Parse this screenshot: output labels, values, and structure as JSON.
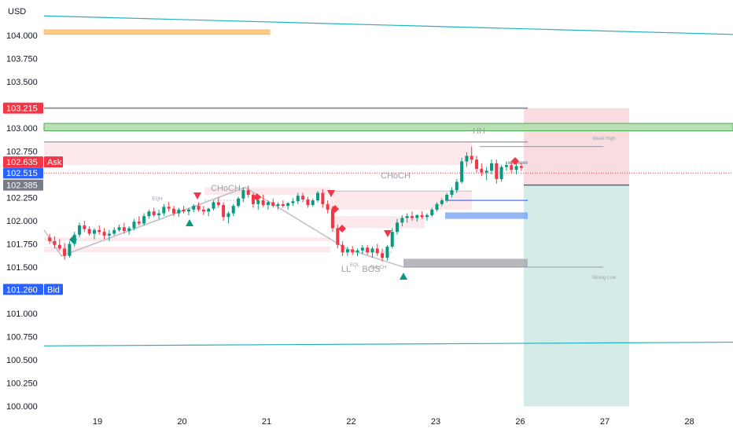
{
  "chart_data": {
    "type": "candlestick",
    "currency": "USD",
    "y_ticks": [
      104.0,
      103.75,
      103.5,
      103.0,
      102.75,
      102.25,
      102.0,
      101.75,
      101.5,
      101.0,
      100.75,
      100.5,
      100.25,
      100.0
    ],
    "y_tick_labels": [
      "104.000",
      "103.750",
      "103.500",
      "103.000",
      "102.750",
      "102.250",
      "102.000",
      "101.750",
      "101.500",
      "101.000",
      "100.750",
      "100.500",
      "100.250",
      "100.000"
    ],
    "x_ticks": [
      19,
      20,
      21,
      22,
      23,
      26,
      27,
      28
    ],
    "x_tick_labels": [
      "19",
      "20",
      "21",
      "22",
      "23",
      "26",
      "27",
      "28"
    ],
    "price_tags": [
      {
        "value": 103.215,
        "label": "103.215",
        "color": "#f23645"
      },
      {
        "value": 102.635,
        "label": "102.635",
        "suffix": "Ask",
        "color": "#f23645"
      },
      {
        "value": 102.515,
        "label": "102.515",
        "color": "#2962ff"
      },
      {
        "value": 102.385,
        "label": "102.385",
        "color": "#787b86"
      },
      {
        "value": 101.26,
        "label": "101.260",
        "suffix": "Bid",
        "color": "#2962ff"
      }
    ],
    "annotations": [
      {
        "text": "EQH"
      },
      {
        "text": "CHoCH"
      },
      {
        "text": "CHoCH"
      },
      {
        "text": "HH"
      },
      {
        "text": "Weak High"
      },
      {
        "text": "LL"
      },
      {
        "text": "EQL"
      },
      {
        "text": "BOS"
      },
      {
        "text": "CHoCH"
      },
      {
        "text": "Strong Low"
      }
    ],
    "trade_box": {
      "entry": 102.385,
      "stop": 103.215,
      "target": 100.0,
      "colors": {
        "loss": "#f7d3d7",
        "profit": "#cfe9e5"
      }
    },
    "colors": {
      "up": "#089981",
      "down": "#f23645",
      "teal": "#22b1bf",
      "green_zone": "#4caf50",
      "orange_zone": "#ffb74d"
    },
    "candles": [
      [
        101.82,
        101.86,
        101.75,
        101.78
      ],
      [
        101.78,
        101.83,
        101.7,
        101.74
      ],
      [
        101.74,
        101.8,
        101.68,
        101.7
      ],
      [
        101.7,
        101.76,
        101.58,
        101.62
      ],
      [
        101.62,
        101.78,
        101.6,
        101.75
      ],
      [
        101.75,
        101.88,
        101.72,
        101.85
      ],
      [
        101.85,
        101.98,
        101.82,
        101.95
      ],
      [
        101.95,
        102.0,
        101.88,
        101.91
      ],
      [
        101.91,
        101.94,
        101.84,
        101.86
      ],
      [
        101.86,
        101.92,
        101.8,
        101.9
      ],
      [
        101.9,
        101.95,
        101.85,
        101.88
      ],
      [
        101.88,
        101.92,
        101.8,
        101.84
      ],
      [
        101.84,
        101.9,
        101.78,
        101.86
      ],
      [
        101.86,
        101.93,
        101.84,
        101.9
      ],
      [
        101.9,
        101.96,
        101.88,
        101.93
      ],
      [
        101.93,
        101.98,
        101.86,
        101.89
      ],
      [
        101.89,
        101.94,
        101.85,
        101.92
      ],
      [
        101.92,
        102.02,
        101.9,
        101.99
      ],
      [
        101.99,
        102.05,
        101.95,
        101.97
      ],
      [
        101.97,
        102.08,
        101.95,
        102.05
      ],
      [
        102.05,
        102.12,
        102.02,
        102.1
      ],
      [
        102.1,
        102.14,
        102.04,
        102.06
      ],
      [
        102.06,
        102.12,
        102.02,
        102.08
      ],
      [
        102.08,
        102.18,
        102.05,
        102.15
      ],
      [
        102.15,
        102.2,
        102.1,
        102.13
      ],
      [
        102.13,
        102.16,
        102.05,
        102.08
      ],
      [
        102.08,
        102.14,
        102.04,
        102.12
      ],
      [
        102.12,
        102.16,
        102.08,
        102.1
      ],
      [
        102.1,
        102.14,
        102.06,
        102.12
      ],
      [
        102.12,
        102.18,
        102.09,
        102.16
      ],
      [
        102.16,
        102.2,
        102.1,
        102.12
      ],
      [
        102.12,
        102.16,
        102.06,
        102.1
      ],
      [
        102.1,
        102.14,
        102.05,
        102.13
      ],
      [
        102.13,
        102.22,
        102.11,
        102.2
      ],
      [
        102.2,
        102.25,
        102.14,
        102.17
      ],
      [
        102.17,
        102.2,
        102.0,
        102.04
      ],
      [
        102.04,
        102.1,
        101.97,
        102.08
      ],
      [
        102.08,
        102.18,
        102.05,
        102.16
      ],
      [
        102.16,
        102.26,
        102.14,
        102.24
      ],
      [
        102.24,
        102.36,
        102.2,
        102.33
      ],
      [
        102.33,
        102.38,
        102.25,
        102.28
      ],
      [
        102.28,
        102.3,
        102.14,
        102.18
      ],
      [
        102.18,
        102.26,
        102.12,
        102.22
      ],
      [
        102.22,
        102.28,
        102.15,
        102.17
      ],
      [
        102.17,
        102.22,
        102.12,
        102.2
      ],
      [
        102.2,
        102.24,
        102.14,
        102.16
      ],
      [
        102.16,
        102.2,
        102.12,
        102.18
      ],
      [
        102.18,
        102.22,
        102.14,
        102.16
      ],
      [
        102.16,
        102.2,
        102.12,
        102.19
      ],
      [
        102.19,
        102.24,
        102.16,
        102.21
      ],
      [
        102.21,
        102.3,
        102.18,
        102.27
      ],
      [
        102.27,
        102.3,
        102.2,
        102.23
      ],
      [
        102.23,
        102.26,
        102.14,
        102.17
      ],
      [
        102.17,
        102.24,
        102.15,
        102.22
      ],
      [
        102.22,
        102.32,
        102.2,
        102.3
      ],
      [
        102.3,
        102.34,
        102.14,
        102.18
      ],
      [
        102.18,
        102.22,
        102.08,
        102.12
      ],
      [
        102.12,
        102.16,
        101.88,
        101.92
      ],
      [
        101.92,
        101.96,
        101.7,
        101.74
      ],
      [
        101.74,
        101.78,
        101.62,
        101.66
      ],
      [
        101.66,
        101.72,
        101.62,
        101.69
      ],
      [
        101.69,
        101.73,
        101.63,
        101.66
      ],
      [
        101.66,
        101.7,
        101.62,
        101.68
      ],
      [
        101.68,
        101.74,
        101.64,
        101.71
      ],
      [
        101.71,
        101.74,
        101.63,
        101.66
      ],
      [
        101.66,
        101.72,
        101.6,
        101.7
      ],
      [
        101.7,
        101.75,
        101.62,
        101.65
      ],
      [
        101.65,
        101.7,
        101.56,
        101.6
      ],
      [
        101.6,
        101.74,
        101.57,
        101.72
      ],
      [
        101.72,
        101.92,
        101.7,
        101.88
      ],
      [
        101.88,
        102.02,
        101.85,
        101.98
      ],
      [
        101.98,
        102.06,
        101.94,
        102.03
      ],
      [
        102.03,
        102.08,
        101.98,
        102.05
      ],
      [
        102.05,
        102.1,
        102.0,
        102.03
      ],
      [
        102.03,
        102.07,
        101.99,
        102.06
      ],
      [
        102.06,
        102.1,
        102.02,
        102.04
      ],
      [
        102.04,
        102.08,
        102.0,
        102.06
      ],
      [
        102.06,
        102.14,
        102.04,
        102.12
      ],
      [
        102.12,
        102.2,
        102.1,
        102.18
      ],
      [
        102.18,
        102.24,
        102.16,
        102.22
      ],
      [
        102.22,
        102.3,
        102.2,
        102.28
      ],
      [
        102.28,
        102.36,
        102.25,
        102.33
      ],
      [
        102.33,
        102.45,
        102.3,
        102.42
      ],
      [
        102.42,
        102.68,
        102.4,
        102.64
      ],
      [
        102.64,
        102.74,
        102.58,
        102.7
      ],
      [
        102.7,
        102.8,
        102.62,
        102.66
      ],
      [
        102.66,
        102.7,
        102.52,
        102.56
      ],
      [
        102.56,
        102.62,
        102.48,
        102.52
      ],
      [
        102.52,
        102.58,
        102.44,
        102.54
      ],
      [
        102.54,
        102.66,
        102.5,
        102.62
      ],
      [
        102.62,
        102.66,
        102.4,
        102.45
      ],
      [
        102.45,
        102.6,
        102.42,
        102.58
      ],
      [
        102.58,
        102.64,
        102.54,
        102.6
      ],
      [
        102.6,
        102.64,
        102.52,
        102.55
      ],
      [
        102.55,
        102.62,
        102.5,
        102.59
      ],
      [
        102.59,
        102.62,
        102.54,
        102.57
      ]
    ]
  }
}
